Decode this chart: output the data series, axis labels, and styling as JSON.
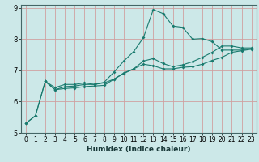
{
  "xlabel": "Humidex (Indice chaleur)",
  "bg_color": "#cce8e8",
  "grid_color": "#d0a0a0",
  "line_color": "#1a7a6e",
  "xlim": [
    -0.5,
    23.5
  ],
  "ylim": [
    5,
    9.1
  ],
  "xticks": [
    0,
    1,
    2,
    3,
    4,
    5,
    6,
    7,
    8,
    9,
    10,
    11,
    12,
    13,
    14,
    15,
    16,
    17,
    18,
    19,
    20,
    21,
    22,
    23
  ],
  "yticks": [
    5,
    6,
    7,
    8,
    9
  ],
  "xlabel_fontsize": 6.5,
  "tick_fontsize": 5.5,
  "series1_x": [
    0,
    1,
    2,
    3,
    4,
    5,
    6,
    7,
    8,
    9,
    10,
    11,
    12,
    13,
    14,
    15,
    16,
    17,
    18,
    19,
    20,
    21,
    22,
    23
  ],
  "series1_y": [
    5.3,
    5.55,
    6.65,
    6.45,
    6.55,
    6.55,
    6.6,
    6.55,
    6.62,
    6.95,
    7.3,
    7.6,
    8.05,
    8.95,
    8.82,
    8.42,
    8.38,
    8.0,
    8.02,
    7.92,
    7.65,
    7.65,
    7.65,
    7.7
  ],
  "series2_x": [
    0,
    1,
    2,
    3,
    4,
    5,
    6,
    7,
    8,
    9,
    10,
    11,
    12,
    13,
    14,
    15,
    16,
    17,
    18,
    19,
    20,
    21,
    22,
    23
  ],
  "series2_y": [
    5.3,
    5.55,
    6.65,
    6.38,
    6.42,
    6.44,
    6.48,
    6.5,
    6.52,
    6.72,
    6.9,
    7.05,
    7.2,
    7.15,
    7.05,
    7.05,
    7.1,
    7.12,
    7.2,
    7.32,
    7.42,
    7.58,
    7.63,
    7.68
  ],
  "series3_x": [
    2,
    3,
    4,
    5,
    6,
    7,
    8,
    9,
    10,
    11,
    12,
    13,
    14,
    15,
    16,
    17,
    18,
    19,
    20,
    21,
    22,
    23
  ],
  "series3_y": [
    6.65,
    6.38,
    6.48,
    6.5,
    6.55,
    6.55,
    6.6,
    6.72,
    6.92,
    7.05,
    7.3,
    7.38,
    7.22,
    7.12,
    7.18,
    7.28,
    7.42,
    7.58,
    7.78,
    7.78,
    7.72,
    7.72
  ]
}
